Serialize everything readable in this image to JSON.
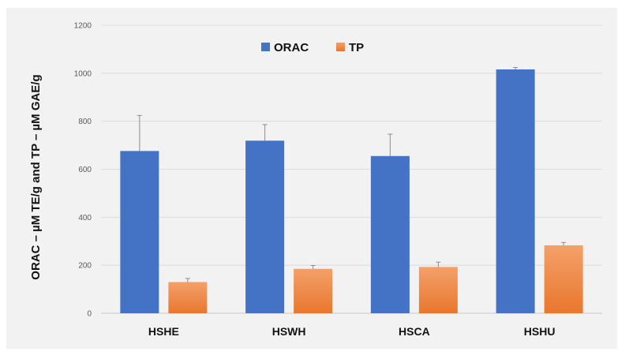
{
  "chart_data": {
    "type": "bar",
    "title": "",
    "xlabel": "",
    "ylabel": "ORAC – µM TE/g and TP – µM GAE/g",
    "ylim": [
      0,
      1200
    ],
    "yticks": [
      "0",
      "200",
      "400",
      "600",
      "800",
      "1000",
      "1200"
    ],
    "grid": true,
    "legend_position": "top-center",
    "categories": [
      "HSHE",
      "HSWH",
      "HSCA",
      "HSHU"
    ],
    "series": [
      {
        "name": "ORAC",
        "color": "#4472c4",
        "values": [
          676,
          719,
          655,
          1016
        ],
        "errors": [
          148,
          67,
          91,
          8
        ]
      },
      {
        "name": "TP",
        "color": "#ed7d31",
        "values": [
          130,
          185,
          193,
          283
        ],
        "errors": [
          15,
          14,
          20,
          12
        ]
      }
    ]
  }
}
